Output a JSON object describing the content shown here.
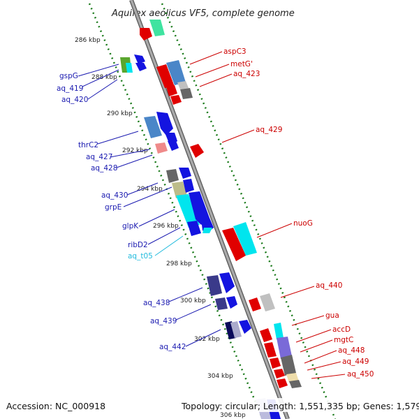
{
  "title": "Aquifex aeolicus VF5, complete genome",
  "footer": {
    "accession": "Accession: NC_000918",
    "topology": "Topology: circular; Length: 1,551,335 bp; Genes: 1,579"
  },
  "ticks": [
    "286 kbp",
    "288 kbp",
    "290 kbp",
    "292 kbp",
    "294 kbp",
    "296 kbp",
    "298 kbp",
    "300 kbp",
    "302 kbp",
    "304 kbp",
    "306 kbp"
  ],
  "left_labels": [
    "gspG",
    "aq_419",
    "aq_420",
    "thrC2",
    "aq_427",
    "aq_428",
    "aq_430",
    "grpE",
    "glpK",
    "ribD2",
    "aq_t05",
    "aq_438",
    "aq_439",
    "aq_442"
  ],
  "right_labels": [
    "aspC3",
    "metG'",
    "aq_423",
    "aq_429",
    "nuoG",
    "aq_440",
    "gua",
    "accD",
    "mgtC",
    "aq_448",
    "aq_449",
    "aq_450"
  ],
  "colors": {
    "backbone": "#888888",
    "tick_dots": "#1a7a1a",
    "forward_strand": "#e00000",
    "reverse_strand": "#0000dd",
    "rna": "#22bbdd",
    "left_label": "#1a1ab0",
    "right_label": "#cc0000"
  }
}
